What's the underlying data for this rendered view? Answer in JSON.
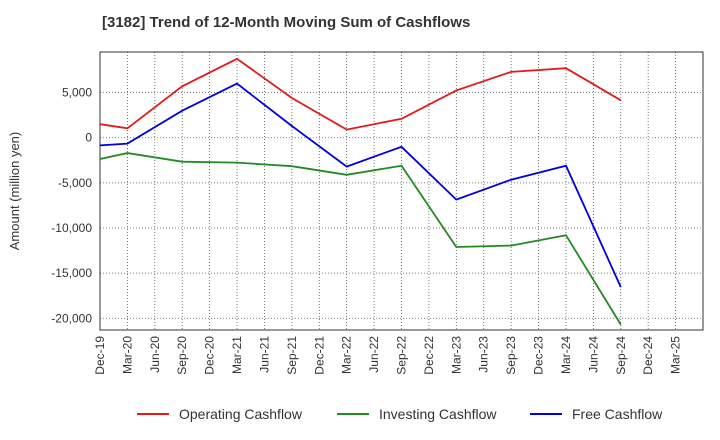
{
  "title": "[3182]  Trend of 12-Month Moving Sum of Cashflows",
  "chart_data": {
    "type": "line",
    "title": "[3182]  Trend of 12-Month Moving Sum of Cashflows",
    "xlabel": "",
    "ylabel": "Amount (million yen)",
    "categories": [
      "Dec-19",
      "Mar-20",
      "Jun-20",
      "Sep-20",
      "Dec-20",
      "Mar-21",
      "Jun-21",
      "Sep-21",
      "Dec-21",
      "Mar-22",
      "Jun-22",
      "Sep-22",
      "Dec-22",
      "Mar-23",
      "Jun-23",
      "Sep-23",
      "Dec-23",
      "Mar-24",
      "Jun-24",
      "Sep-24",
      "Dec-24",
      "Mar-25"
    ],
    "ylim": [
      -21300,
      9500
    ],
    "yticks": [
      5000,
      0,
      -5000,
      -10000,
      -15000,
      -20000
    ],
    "ytick_labels": [
      "5,000",
      "0",
      "-5,000",
      "-10,000",
      "-15,000",
      "-20,000"
    ],
    "grid": true,
    "legend_position": "bottom",
    "series": [
      {
        "name": "Operating Cashflow",
        "color": "#e31a1c",
        "values": [
          1500,
          1050,
          null,
          5700,
          null,
          8750,
          null,
          4400,
          null,
          900,
          null,
          2100,
          null,
          5250,
          null,
          7300,
          null,
          7700,
          null,
          4150,
          null,
          null
        ]
      },
      {
        "name": "Investing Cashflow",
        "color": "#228b22",
        "values": [
          -2350,
          -1700,
          null,
          -2650,
          null,
          -2750,
          null,
          -3150,
          null,
          -4100,
          null,
          -3100,
          null,
          -12100,
          null,
          -11950,
          null,
          -10800,
          null,
          -20700,
          null,
          null
        ]
      },
      {
        "name": "Free Cashflow",
        "color": "#0000e0",
        "values": [
          -850,
          -650,
          null,
          3000,
          null,
          6000,
          null,
          1300,
          null,
          -3200,
          null,
          -1000,
          null,
          -6850,
          null,
          -4650,
          null,
          -3100,
          null,
          -16550,
          null,
          null
        ]
      }
    ]
  }
}
